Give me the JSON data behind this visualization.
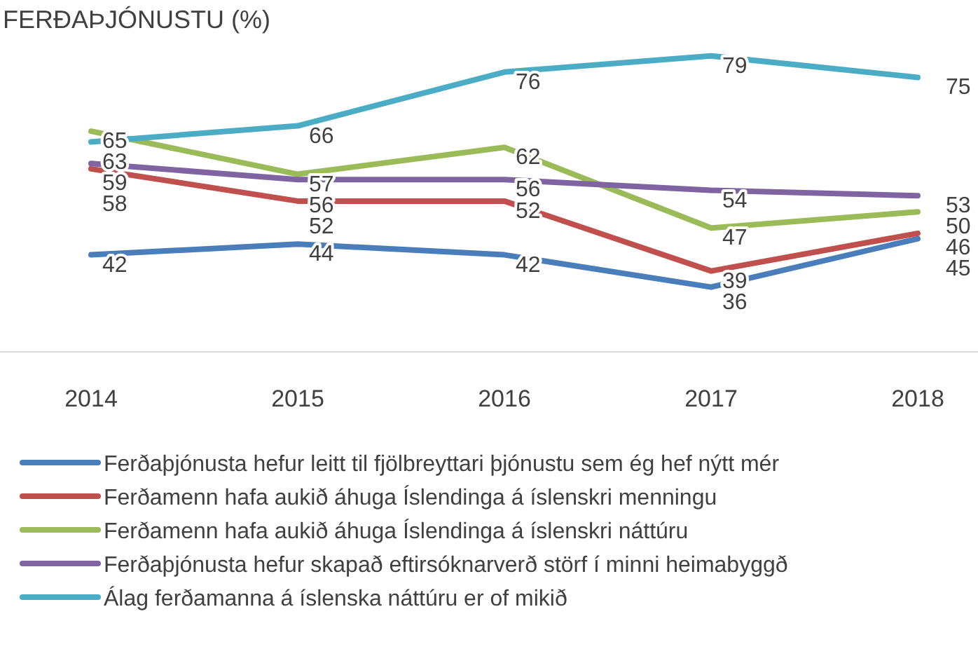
{
  "chart_data": {
    "type": "line",
    "title": "FERÐAÞJÓNUSTU (%)",
    "categories": [
      "2014",
      "2015",
      "2016",
      "2017",
      "2018"
    ],
    "data_labels": true,
    "legend": "bottom",
    "grid": false,
    "marker": "none",
    "line_style": "solid",
    "tick_labels": "x",
    "series": [
      {
        "name": "Ferðaþjónusta hefur leitt til fjölbreyttari þjónustu sem ég hef nýtt mér",
        "color": "#4a7ebb",
        "values": [
          42,
          44,
          42,
          36,
          45
        ]
      },
      {
        "name": "Ferðamenn hafa aukið áhuga Íslendinga á íslenskri menningu",
        "color": "#c0504d",
        "values": [
          58,
          52,
          52,
          39,
          46
        ]
      },
      {
        "name": "Ferðamenn hafa aukið áhuga Íslendinga á íslenskri náttúru",
        "color": "#9bbb59",
        "values": [
          65,
          57,
          62,
          47,
          50
        ]
      },
      {
        "name": "Ferðaþjónusta hefur skapað eftirsóknarverð störf í minni heimabyggð",
        "color": "#8064a2",
        "values": [
          59,
          56,
          56,
          54,
          53
        ]
      },
      {
        "name": "Álag ferðamanna á íslenska náttúru er of mikið",
        "color": "#4bacc6",
        "values": [
          63,
          66,
          76,
          79,
          75
        ]
      }
    ]
  }
}
